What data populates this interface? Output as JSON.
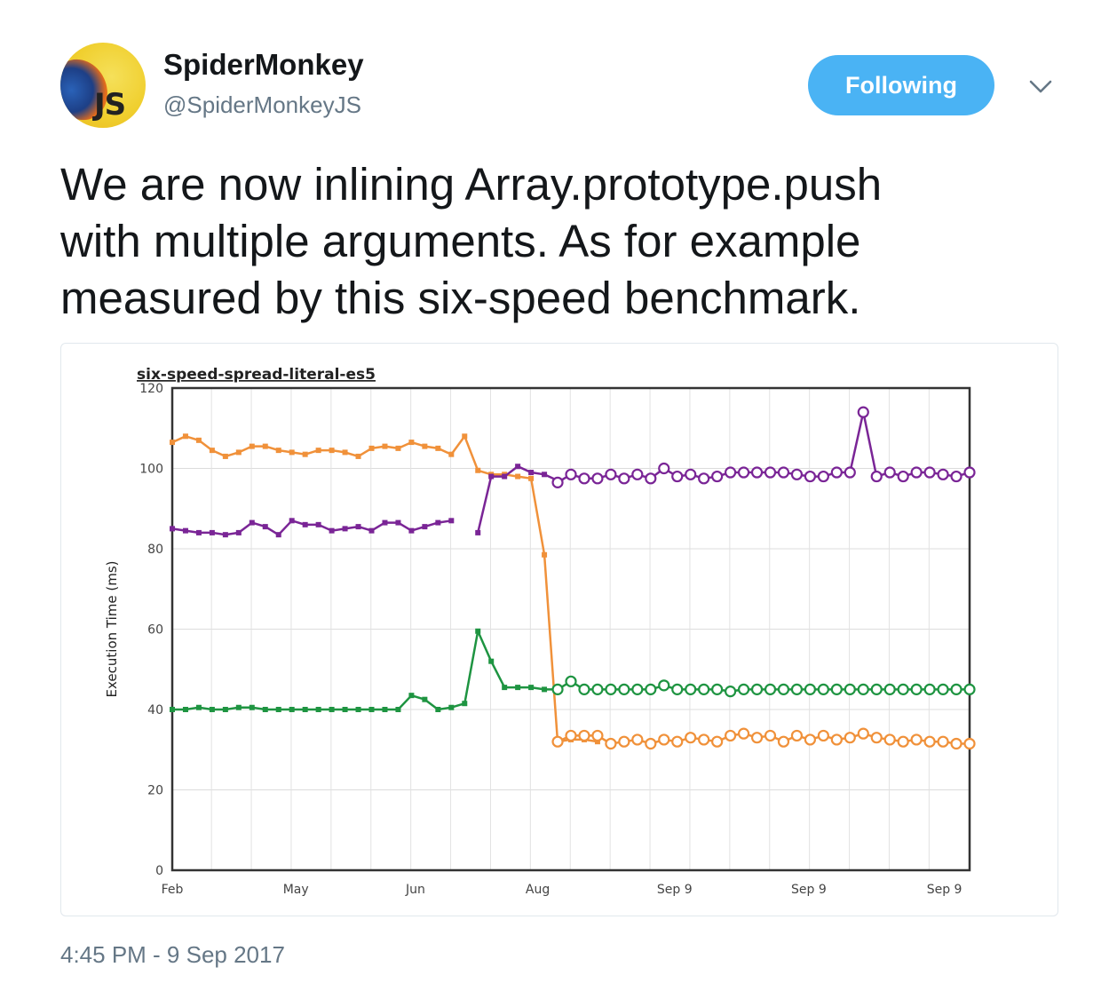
{
  "user": {
    "name": "SpiderMonkey",
    "handle": "@SpiderMonkeyJS",
    "avatar_text": "JS"
  },
  "follow_button": {
    "label": "Following",
    "color": "#4ab3f4"
  },
  "menu_icon": "chevron-down-icon",
  "tweet": {
    "lines": [
      "We are now inlining Array.prototype.push",
      "with multiple arguments. As for example",
      "measured by this six-speed benchmark."
    ]
  },
  "timestamp": "4:45 PM - 9 Sep 2017",
  "chart_data": {
    "type": "line",
    "title": "six-speed-spread-literal-es5",
    "ylabel": "Execution Time (ms)",
    "xlabel": "",
    "ylim": [
      0,
      120
    ],
    "yticks": [
      0,
      20,
      40,
      60,
      80,
      100,
      120
    ],
    "x_range": [
      0,
      60
    ],
    "xticks": [
      {
        "x": 0,
        "label": "Feb"
      },
      {
        "x": 9.3,
        "label": "May"
      },
      {
        "x": 18.3,
        "label": "Jun"
      },
      {
        "x": 27.5,
        "label": "Aug"
      },
      {
        "x": 37.8,
        "label": "Sep 9"
      },
      {
        "x": 47.9,
        "label": "Sep 9"
      },
      {
        "x": 58.1,
        "label": "Sep 9"
      }
    ],
    "grid": true,
    "series": [
      {
        "color": "#f0913a",
        "segments": [
          {
            "marker": "square",
            "points": [
              [
                0,
                106.5
              ],
              [
                1,
                108
              ],
              [
                2,
                107
              ],
              [
                3,
                104.5
              ],
              [
                4,
                103
              ],
              [
                5,
                104
              ],
              [
                6,
                105.5
              ],
              [
                7,
                105.5
              ],
              [
                8,
                104.5
              ],
              [
                9,
                104
              ],
              [
                10,
                103.5
              ],
              [
                11,
                104.5
              ],
              [
                12,
                104.5
              ],
              [
                13,
                104
              ],
              [
                14,
                103
              ],
              [
                15,
                105
              ],
              [
                16,
                105.5
              ],
              [
                17,
                105
              ],
              [
                18,
                106.5
              ],
              [
                19,
                105.5
              ],
              [
                20,
                105
              ],
              [
                21,
                103.5
              ],
              [
                22,
                108
              ],
              [
                23,
                99.5
              ],
              [
                24,
                98.5
              ],
              [
                25,
                98.5
              ],
              [
                26,
                98
              ],
              [
                27,
                97.5
              ],
              [
                28,
                78.5
              ],
              [
                29,
                32
              ],
              [
                30,
                32.5
              ],
              [
                31,
                32.5
              ],
              [
                32,
                32
              ]
            ]
          },
          {
            "marker": "circle",
            "points": [
              [
                29,
                32
              ],
              [
                30,
                33.5
              ],
              [
                31,
                33.5
              ],
              [
                32,
                33.5
              ],
              [
                33,
                31.5
              ],
              [
                34,
                32
              ],
              [
                35,
                32.5
              ],
              [
                36,
                31.5
              ],
              [
                37,
                32.5
              ],
              [
                38,
                32
              ],
              [
                39,
                33
              ],
              [
                40,
                32.5
              ],
              [
                41,
                32
              ],
              [
                42,
                33.5
              ],
              [
                43,
                34
              ],
              [
                44,
                33
              ],
              [
                45,
                33.5
              ],
              [
                46,
                32
              ],
              [
                47,
                33.5
              ],
              [
                48,
                32.5
              ],
              [
                49,
                33.5
              ],
              [
                50,
                32.5
              ],
              [
                51,
                33
              ],
              [
                52,
                34
              ],
              [
                53,
                33
              ],
              [
                54,
                32.5
              ],
              [
                55,
                32
              ],
              [
                56,
                32.5
              ],
              [
                57,
                32
              ],
              [
                58,
                32
              ],
              [
                59,
                31.5
              ],
              [
                60,
                31.5
              ]
            ]
          }
        ]
      },
      {
        "color": "#7a2596",
        "segments": [
          {
            "marker": "square",
            "points": [
              [
                0,
                85
              ],
              [
                1,
                84.5
              ],
              [
                2,
                84
              ],
              [
                3,
                84
              ],
              [
                4,
                83.5
              ],
              [
                5,
                84
              ],
              [
                6,
                86.5
              ],
              [
                7,
                85.5
              ],
              [
                8,
                83.5
              ],
              [
                9,
                87
              ],
              [
                10,
                86
              ],
              [
                11,
                86
              ],
              [
                12,
                84.5
              ],
              [
                13,
                85
              ],
              [
                14,
                85.5
              ],
              [
                15,
                84.5
              ],
              [
                16,
                86.5
              ],
              [
                17,
                86.5
              ],
              [
                18,
                84.5
              ],
              [
                19,
                85.5
              ],
              [
                20,
                86.5
              ],
              [
                21,
                87
              ]
            ]
          },
          {
            "marker": "square",
            "points": [
              [
                23,
                84
              ],
              [
                24,
                98
              ],
              [
                25,
                98
              ],
              [
                26,
                100.5
              ],
              [
                27,
                99
              ],
              [
                28,
                98.5
              ],
              [
                29,
                97
              ]
            ]
          },
          {
            "marker": "circle",
            "points": [
              [
                29,
                96.5
              ],
              [
                30,
                98.5
              ],
              [
                31,
                97.5
              ],
              [
                32,
                97.5
              ],
              [
                33,
                98.5
              ],
              [
                34,
                97.5
              ],
              [
                35,
                98.5
              ],
              [
                36,
                97.5
              ],
              [
                37,
                100
              ],
              [
                38,
                98
              ],
              [
                39,
                98.5
              ],
              [
                40,
                97.5
              ],
              [
                41,
                98
              ],
              [
                42,
                99
              ],
              [
                43,
                99
              ],
              [
                44,
                99
              ],
              [
                45,
                99
              ],
              [
                46,
                99
              ],
              [
                47,
                98.5
              ],
              [
                48,
                98
              ],
              [
                49,
                98
              ],
              [
                50,
                99
              ],
              [
                51,
                99
              ],
              [
                52,
                114
              ],
              [
                53,
                98
              ],
              [
                54,
                99
              ],
              [
                55,
                98
              ],
              [
                56,
                99
              ],
              [
                57,
                99
              ],
              [
                58,
                98.5
              ],
              [
                59,
                98
              ],
              [
                60,
                99
              ]
            ]
          }
        ]
      },
      {
        "color": "#1e9441",
        "segments": [
          {
            "marker": "square",
            "points": [
              [
                0,
                40
              ],
              [
                1,
                40
              ],
              [
                2,
                40.5
              ],
              [
                3,
                40
              ],
              [
                4,
                40
              ],
              [
                5,
                40.5
              ],
              [
                6,
                40.5
              ],
              [
                7,
                40
              ],
              [
                8,
                40
              ],
              [
                9,
                40
              ],
              [
                10,
                40
              ],
              [
                11,
                40
              ],
              [
                12,
                40
              ],
              [
                13,
                40
              ],
              [
                14,
                40
              ],
              [
                15,
                40
              ],
              [
                16,
                40
              ],
              [
                17,
                40
              ],
              [
                18,
                43.5
              ],
              [
                19,
                42.5
              ],
              [
                20,
                40
              ],
              [
                21,
                40.5
              ],
              [
                22,
                41.5
              ],
              [
                23,
                59.5
              ],
              [
                24,
                52
              ],
              [
                25,
                45.5
              ],
              [
                26,
                45.5
              ],
              [
                27,
                45.5
              ],
              [
                28,
                45
              ],
              [
                29,
                45
              ]
            ]
          },
          {
            "marker": "circle",
            "points": [
              [
                29,
                45
              ],
              [
                30,
                47
              ],
              [
                31,
                45
              ],
              [
                32,
                45
              ],
              [
                33,
                45
              ],
              [
                34,
                45
              ],
              [
                35,
                45
              ],
              [
                36,
                45
              ],
              [
                37,
                46
              ],
              [
                38,
                45
              ],
              [
                39,
                45
              ],
              [
                40,
                45
              ],
              [
                41,
                45
              ],
              [
                42,
                44.5
              ],
              [
                43,
                45
              ],
              [
                44,
                45
              ],
              [
                45,
                45
              ],
              [
                46,
                45
              ],
              [
                47,
                45
              ],
              [
                48,
                45
              ],
              [
                49,
                45
              ],
              [
                50,
                45
              ],
              [
                51,
                45
              ],
              [
                52,
                45
              ],
              [
                53,
                45
              ],
              [
                54,
                45
              ],
              [
                55,
                45
              ],
              [
                56,
                45
              ],
              [
                57,
                45
              ],
              [
                58,
                45
              ],
              [
                59,
                45
              ],
              [
                60,
                45
              ]
            ]
          }
        ]
      }
    ]
  }
}
